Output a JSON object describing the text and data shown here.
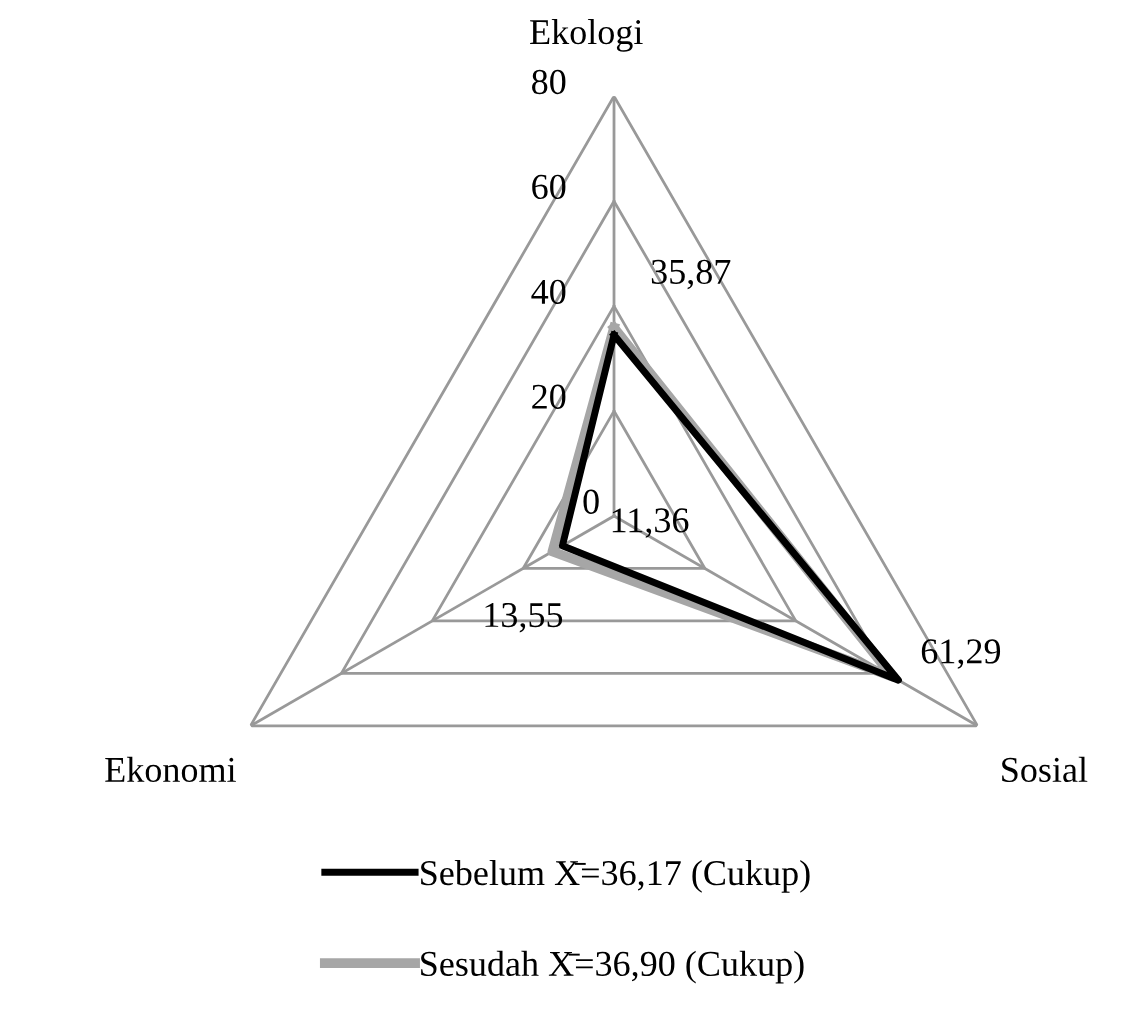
{
  "chart_data": {
    "type": "radar",
    "categories": [
      "Ekologi",
      "Sosial",
      "Ekonomi"
    ],
    "ylim": [
      0,
      80
    ],
    "yticks": [
      0,
      20,
      40,
      60,
      80
    ],
    "grid": true,
    "legend": "bottom",
    "series": [
      {
        "name": "Sebelum X̄=36,17 (Cukup)",
        "color": "#000000",
        "values": [
          34.5,
          62.6,
          11.36
        ],
        "value_labels": [
          null,
          null,
          "11,36"
        ]
      },
      {
        "name": "Sesudah X̄=36,90 (Cukup)",
        "color": "#a6a6a6",
        "values": [
          35.87,
          61.29,
          13.55
        ],
        "value_labels": [
          "35,87",
          "61,29",
          "13,55"
        ]
      }
    ]
  }
}
